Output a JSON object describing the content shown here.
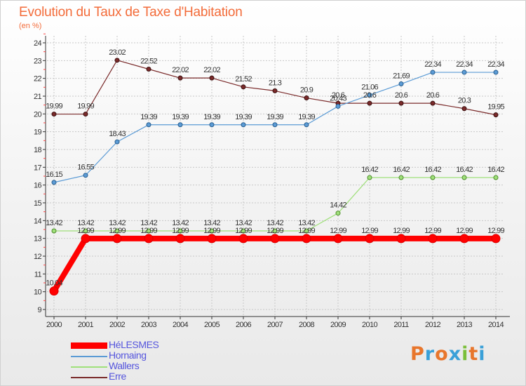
{
  "header": {
    "title": "Evolution du Taux de Taxe d'Habitation",
    "subtitle": "(en %)"
  },
  "logo": {
    "text": "Proxiti",
    "colors": [
      "#e8762c",
      "#3aa0d8",
      "#e8762c",
      "#3aa0d8",
      "#7bbf3a",
      "#e8762c",
      "#3aa0d8"
    ]
  },
  "chart_data": {
    "type": "line",
    "title": "Evolution du Taux de Taxe d'Habitation",
    "ylabel": "(en %)",
    "xlabel": "",
    "x": [
      "2000",
      "2001",
      "2002",
      "2003",
      "2004",
      "2005",
      "2006",
      "2007",
      "2008",
      "2009",
      "2010",
      "2011",
      "2012",
      "2013",
      "2014"
    ],
    "ylim": [
      9,
      24
    ],
    "yticks": [
      "9",
      "10",
      "11",
      "12",
      "13",
      "14",
      "15",
      "16",
      "17",
      "18",
      "19",
      "20",
      "21",
      "22",
      "23",
      "24"
    ],
    "grid": true,
    "legend_position": "bottom-left",
    "series": [
      {
        "name": "HéLESMES",
        "color": "#ff0000",
        "values": [
          10.04,
          12.99,
          12.99,
          12.99,
          12.99,
          12.99,
          12.99,
          12.99,
          12.99,
          12.99,
          12.99,
          12.99,
          12.99,
          12.99,
          12.99
        ],
        "labels": [
          "10.04",
          "12.99",
          "12.99",
          "12.99",
          "12.99",
          "12.99",
          "12.99",
          "12.99",
          "12.99",
          "12.99",
          "12.99",
          "12.99",
          "12.99",
          "12.99",
          "12.99"
        ]
      },
      {
        "name": "Hornaing",
        "color": "#5b9bd5",
        "values": [
          16.15,
          16.55,
          18.43,
          19.39,
          19.39,
          19.39,
          19.39,
          19.39,
          19.39,
          20.43,
          21.06,
          21.69,
          22.34,
          22.34,
          22.34
        ],
        "labels": [
          "16.15",
          "16.55",
          "18.43",
          "19.39",
          "19.39",
          "19.39",
          "19.39",
          "19.39",
          "19.39",
          "20.43",
          "21.06",
          "21.69",
          "22.34",
          "22.34",
          "22.34"
        ]
      },
      {
        "name": "Wallers",
        "color": "#9fe07a",
        "values": [
          13.42,
          13.42,
          13.42,
          13.42,
          13.42,
          13.42,
          13.42,
          13.42,
          13.42,
          14.42,
          16.42,
          16.42,
          16.42,
          16.42,
          16.42
        ],
        "labels": [
          "13.42",
          "13.42",
          "13.42",
          "13.42",
          "13.42",
          "13.42",
          "13.42",
          "13.42",
          "13.42",
          "14.42",
          "16.42",
          "16.42",
          "16.42",
          "16.42",
          "16.42"
        ]
      },
      {
        "name": "Erre",
        "color": "#7a2a2a",
        "values": [
          19.99,
          19.99,
          23.02,
          22.52,
          22.02,
          22.02,
          21.52,
          21.3,
          20.9,
          20.6,
          20.6,
          20.6,
          20.6,
          20.3,
          19.95
        ],
        "labels": [
          "19.99",
          "19.99",
          "23.02",
          "22.52",
          "22.02",
          "22.02",
          "21.52",
          "21.3",
          "20.9",
          "20.6",
          "20.6",
          "20.6",
          "20.6",
          "20.3",
          "19.95"
        ]
      }
    ]
  }
}
